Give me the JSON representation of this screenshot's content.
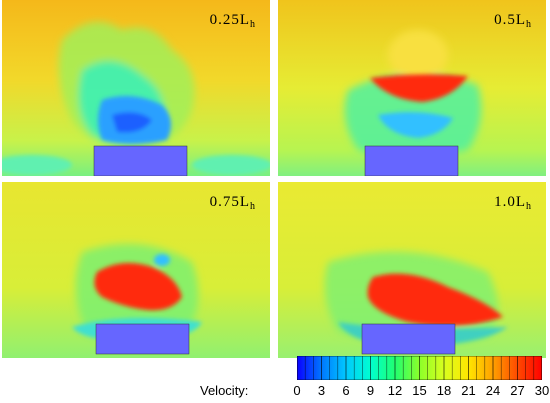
{
  "panels": [
    {
      "label_main": "0.25L",
      "label_sub": "h"
    },
    {
      "label_main": "0.5L",
      "label_sub": "h"
    },
    {
      "label_main": "0.75L",
      "label_sub": "h"
    },
    {
      "label_main": "1.0L",
      "label_sub": "h"
    }
  ],
  "colorbar": {
    "title": "Velocity:",
    "ticks": [
      "0",
      "3",
      "6",
      "9",
      "12",
      "15",
      "18",
      "21",
      "24",
      "27",
      "30"
    ],
    "colors": [
      "#0a00ff",
      "#0077ff",
      "#00c8ff",
      "#00ffd0",
      "#20ff70",
      "#8cff2a",
      "#d8ff1e",
      "#ffe600",
      "#ffa000",
      "#ff4a00",
      "#ff0000"
    ]
  },
  "colors": {
    "background_field": "#e2ef3a",
    "upper_field": "#f4c018",
    "block": "#6666ff",
    "high_velocity": "#ff2a10",
    "low_velocity": "#2a7cff"
  }
}
